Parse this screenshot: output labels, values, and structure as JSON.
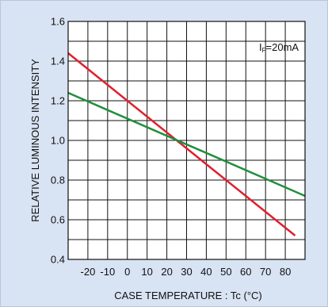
{
  "chart_data": {
    "type": "line",
    "xlabel": "CASE TEMPERATURE : Tc (°C)",
    "ylabel": "RELATIVE LUMINOUS INTENSITY",
    "xlim": [
      -30,
      90
    ],
    "ylim": [
      0.4,
      1.6
    ],
    "x_ticks": [
      "-20",
      "-10",
      "0",
      "10",
      "20",
      "30",
      "40",
      "50",
      "60",
      "70",
      "80"
    ],
    "y_ticks": [
      "0.4",
      "0.6",
      "0.8",
      "1.0",
      "1.2",
      "1.4",
      "1.6"
    ],
    "grid": true,
    "annotation": {
      "main": "I",
      "sub": "F",
      "rest": "=20mA"
    },
    "series": [
      {
        "color": "#e0202f",
        "x": [
          -30,
          85
        ],
        "y": [
          1.44,
          0.52
        ]
      },
      {
        "color": "#1f8f3a",
        "x": [
          -30,
          90
        ],
        "y": [
          1.24,
          0.72
        ]
      }
    ]
  }
}
